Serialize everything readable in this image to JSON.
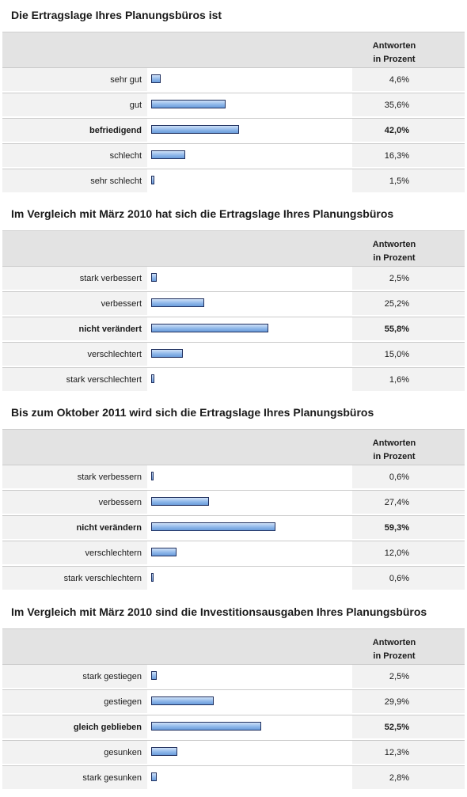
{
  "header": {
    "line1": "Antworten",
    "line2": "in Prozent"
  },
  "colors": {
    "bar_fill": "#8fb8ea",
    "bar_border": "#1f2f5e",
    "header_bg": "#e3e3e3",
    "row_bg": "#f2f2f2"
  },
  "chart_data": [
    {
      "type": "bar",
      "title": "Die Ertragslage Ihres Planungsbüros ist",
      "categories": [
        "sehr gut",
        "gut",
        "befriedigend",
        "schlecht",
        "sehr schlecht"
      ],
      "values": [
        4.6,
        35.6,
        42.0,
        16.3,
        1.5
      ],
      "value_labels": [
        "4,6%",
        "35,6%",
        "42,0%",
        "16,3%",
        "1,5%"
      ],
      "highlight": "befriedigend"
    },
    {
      "type": "bar",
      "title": "Im Vergleich mit März 2010 hat sich die Ertragslage Ihres Planungsbüros",
      "categories": [
        "stark verbessert",
        "verbessert",
        "nicht verändert",
        "verschlechtert",
        "stark verschlechtert"
      ],
      "values": [
        2.5,
        25.2,
        55.8,
        15.0,
        1.6
      ],
      "value_labels": [
        "2,5%",
        "25,2%",
        "55,8%",
        "15,0%",
        "1,6%"
      ],
      "highlight": "nicht verändert"
    },
    {
      "type": "bar",
      "title": "Bis zum Oktober 2011 wird sich die Ertragslage Ihres Planungsbüros",
      "categories": [
        "stark verbessern",
        "verbessern",
        "nicht verändern",
        "verschlechtern",
        "stark verschlechtern"
      ],
      "values": [
        0.6,
        27.4,
        59.3,
        12.0,
        0.6
      ],
      "value_labels": [
        "0,6%",
        "27,4%",
        "59,3%",
        "12,0%",
        "0,6%"
      ],
      "highlight": "nicht verändern"
    },
    {
      "type": "bar",
      "title": "Im Vergleich mit März 2010 sind die Investitionsausgaben Ihres Planungsbüros",
      "categories": [
        "stark gestiegen",
        "gestiegen",
        "gleich geblieben",
        "gesunken",
        "stark gesunken"
      ],
      "values": [
        2.5,
        29.9,
        52.5,
        12.3,
        2.8
      ],
      "value_labels": [
        "2,5%",
        "29,9%",
        "52,5%",
        "12,3%",
        "2,8%"
      ],
      "highlight": "gleich geblieben"
    }
  ]
}
